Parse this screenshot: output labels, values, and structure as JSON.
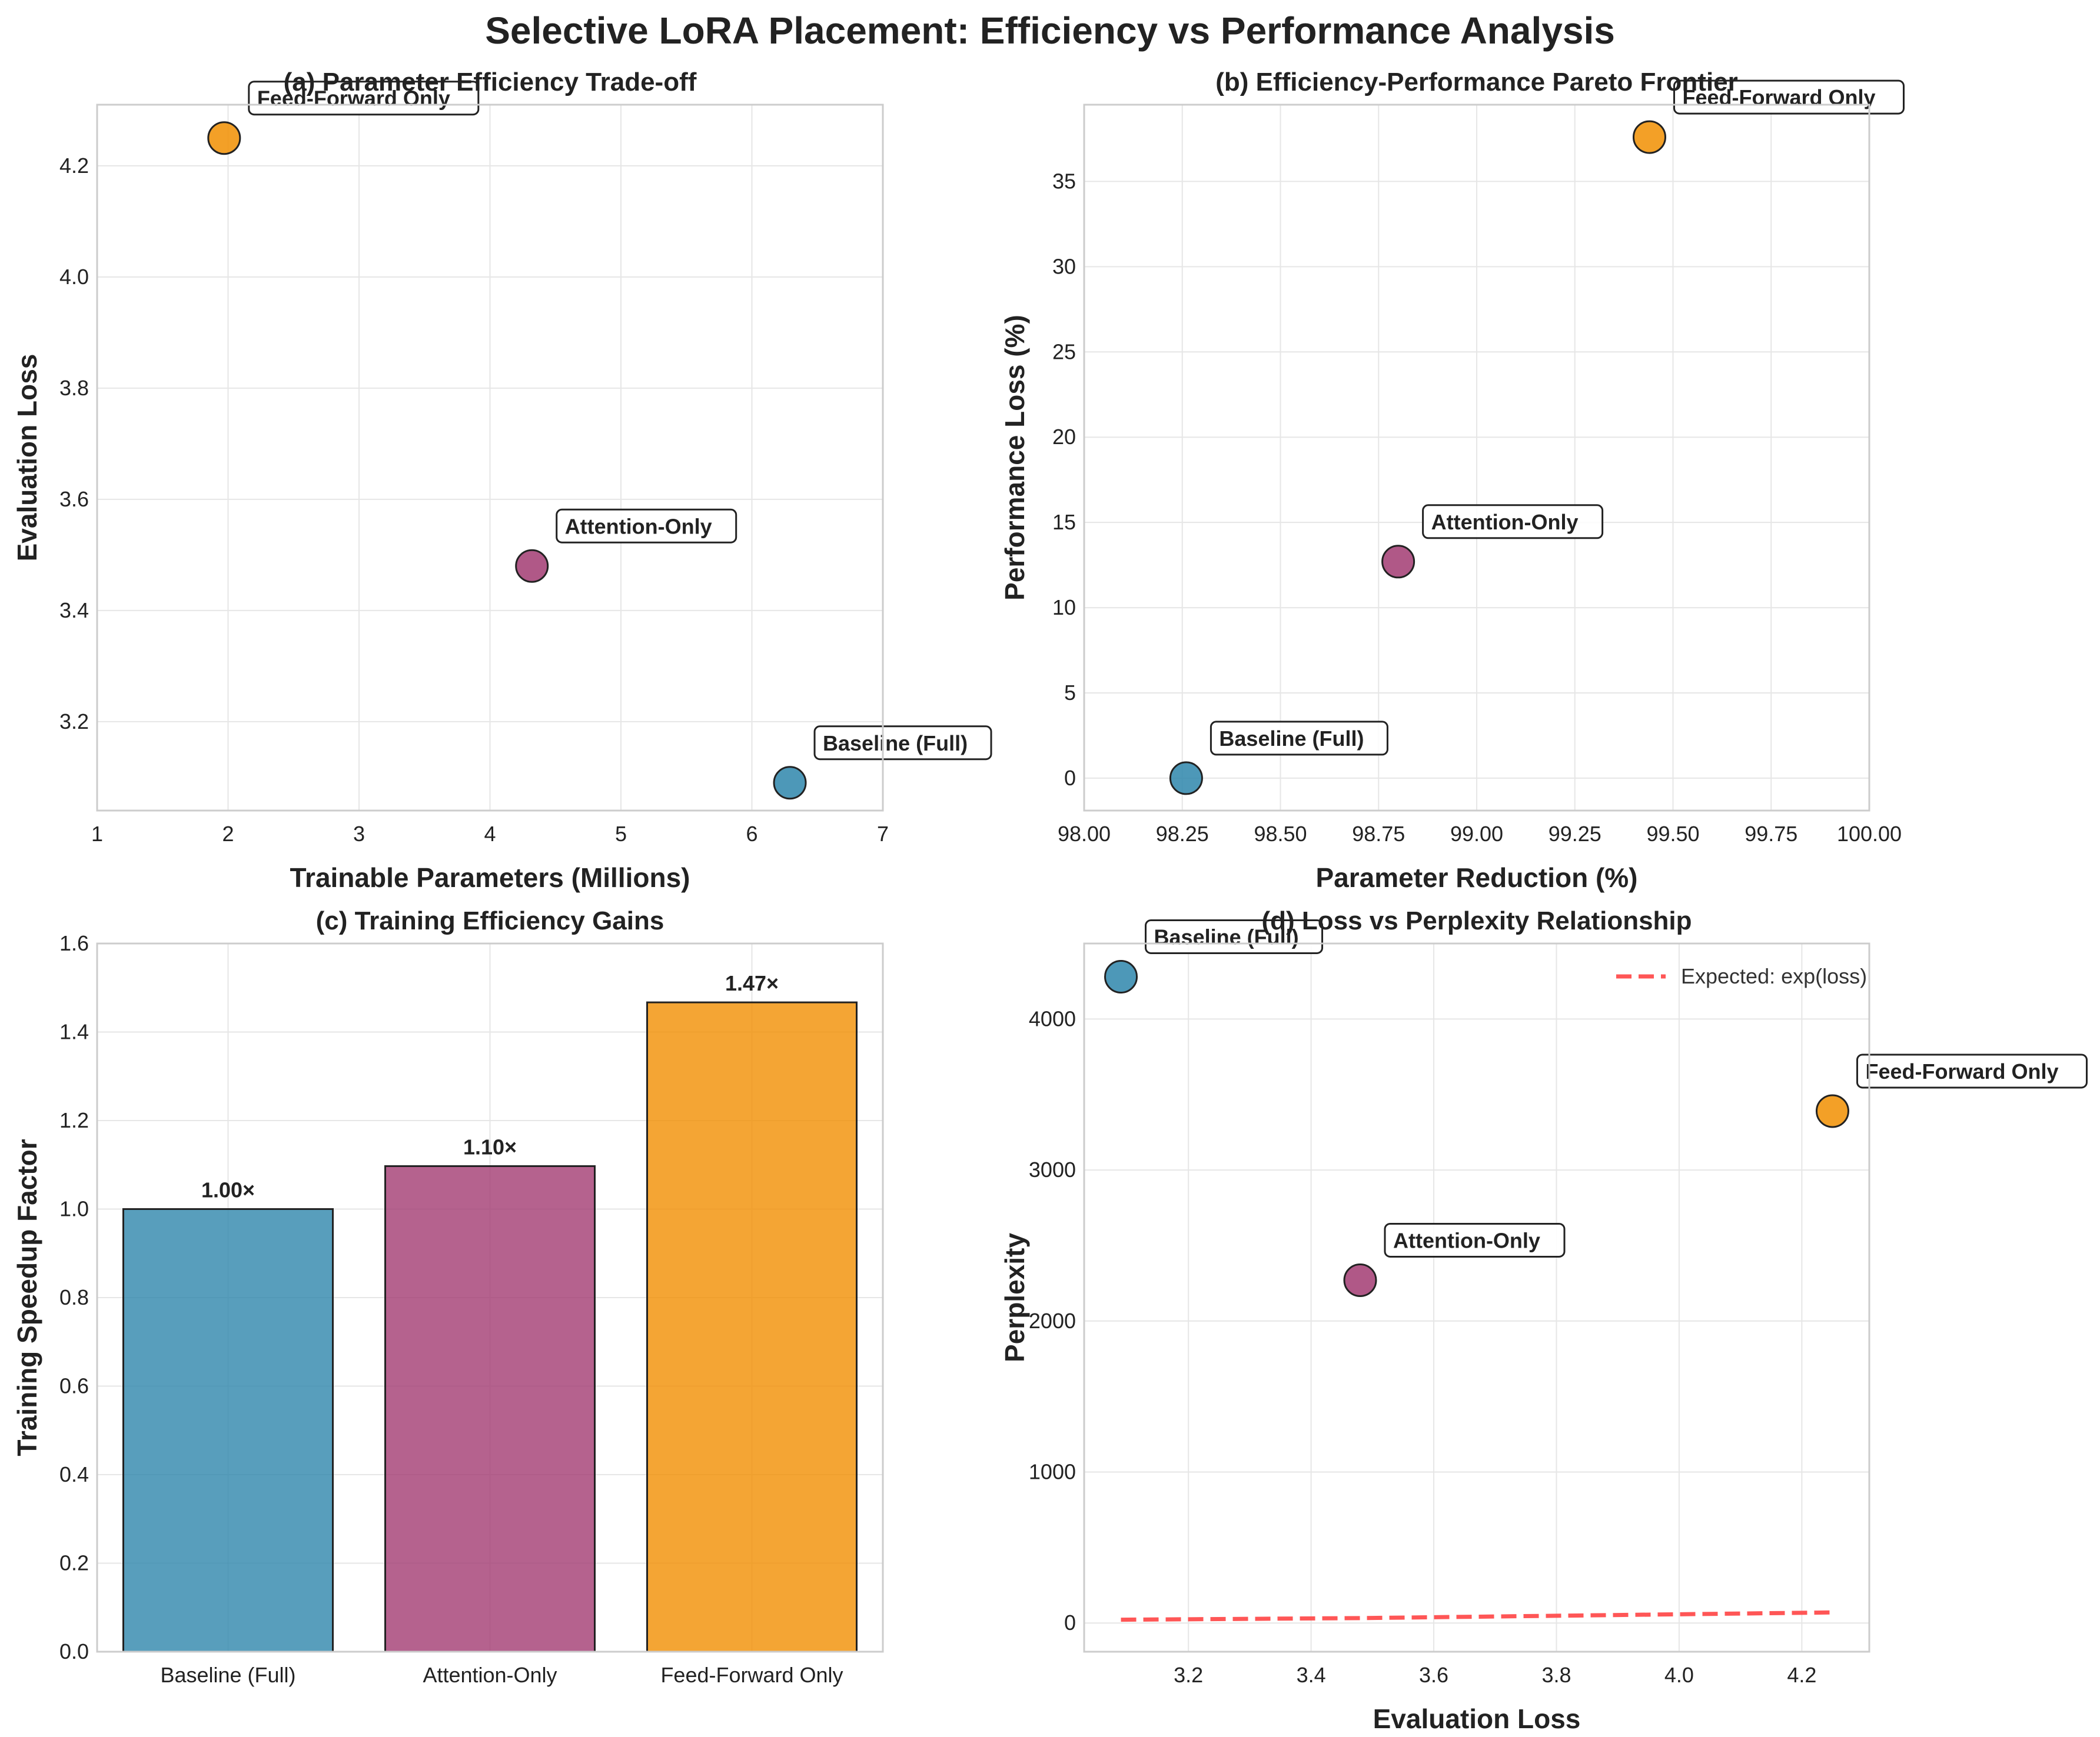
{
  "figure": {
    "title": "Selective LoRA Placement: Efficiency vs Performance Analysis"
  },
  "colors": {
    "baseline": "#2E86AB",
    "attention": "#A23B72",
    "feedforward": "#F18F01",
    "expected_line": "#FF4444"
  },
  "chart_data": [
    {
      "type": "scatter",
      "title": "(a) Parameter Efficiency Trade-off",
      "xlabel": "Trainable Parameters (Millions)",
      "ylabel": "Evaluation Loss",
      "xlim": [
        1,
        7
      ],
      "ylim": [
        3.04,
        4.31
      ],
      "xticks": [
        "1",
        "2",
        "3",
        "4",
        "5",
        "6",
        "7"
      ],
      "yticks": [
        "3.2",
        "3.4",
        "3.6",
        "3.8",
        "4.0",
        "4.2"
      ],
      "grid": true,
      "points": [
        {
          "label": "Baseline (Full)",
          "x": 6.29,
          "y": 3.09,
          "color_key": "baseline"
        },
        {
          "label": "Attention-Only",
          "x": 4.32,
          "y": 3.48,
          "color_key": "attention"
        },
        {
          "label": "Feed-Forward Only",
          "x": 1.97,
          "y": 4.25,
          "color_key": "feedforward"
        }
      ]
    },
    {
      "type": "scatter",
      "title": "(b) Efficiency-Performance Pareto Frontier",
      "xlabel": "Parameter Reduction (%)",
      "ylabel": "Performance Loss (%)",
      "xlim": [
        98.0,
        100.0
      ],
      "ylim": [
        -1.9,
        39.5
      ],
      "xticks": [
        "98.00",
        "98.25",
        "98.50",
        "98.75",
        "99.00",
        "99.25",
        "99.50",
        "99.75",
        "100.00"
      ],
      "yticks": [
        "0",
        "5",
        "10",
        "15",
        "20",
        "25",
        "30",
        "35"
      ],
      "grid": true,
      "points": [
        {
          "label": "Baseline (Full)",
          "x": 98.26,
          "y": 0.0,
          "color_key": "baseline"
        },
        {
          "label": "Attention-Only",
          "x": 98.8,
          "y": 12.7,
          "color_key": "attention"
        },
        {
          "label": "Feed-Forward Only",
          "x": 99.44,
          "y": 37.6,
          "color_key": "feedforward"
        }
      ]
    },
    {
      "type": "bar",
      "title": "(c) Training Efficiency Gains",
      "xlabel": "",
      "ylabel": "Training Speedup Factor",
      "ylim": [
        0,
        1.6
      ],
      "yticks": [
        "0.0",
        "0.2",
        "0.4",
        "0.6",
        "0.8",
        "1.0",
        "1.2",
        "1.4",
        "1.6"
      ],
      "grid": true,
      "categories": [
        "Baseline (Full)",
        "Attention-Only",
        "Feed-Forward Only"
      ],
      "values": [
        1.0,
        1.097,
        1.467
      ],
      "value_labels": [
        "1.00×",
        "1.10×",
        "1.47×"
      ],
      "color_keys": [
        "baseline",
        "attention",
        "feedforward"
      ]
    },
    {
      "type": "scatter",
      "title": "(d) Loss vs Perplexity Relationship",
      "xlabel": "Evaluation Loss",
      "ylabel": "Perplexity",
      "xlim": [
        3.03,
        4.31
      ],
      "ylim": [
        -190,
        4500
      ],
      "xticks": [
        "3.2",
        "3.4",
        "3.6",
        "3.8",
        "4.0",
        "4.2"
      ],
      "yticks": [
        "0",
        "1000",
        "2000",
        "3000",
        "4000"
      ],
      "grid": true,
      "legend_position": "upper right",
      "points": [
        {
          "label": "Baseline (Full)",
          "x": 3.09,
          "y": 4280,
          "color_key": "baseline"
        },
        {
          "label": "Attention-Only",
          "x": 3.48,
          "y": 2270,
          "color_key": "attention"
        },
        {
          "label": "Feed-Forward Only",
          "x": 4.25,
          "y": 3390,
          "color_key": "feedforward"
        }
      ],
      "line": {
        "name": "Expected: exp(loss)",
        "x": [
          3.09,
          3.48,
          4.25
        ],
        "y": [
          22.0,
          32.5,
          70.1
        ],
        "style": "dashed",
        "color_key": "expected_line"
      }
    }
  ]
}
